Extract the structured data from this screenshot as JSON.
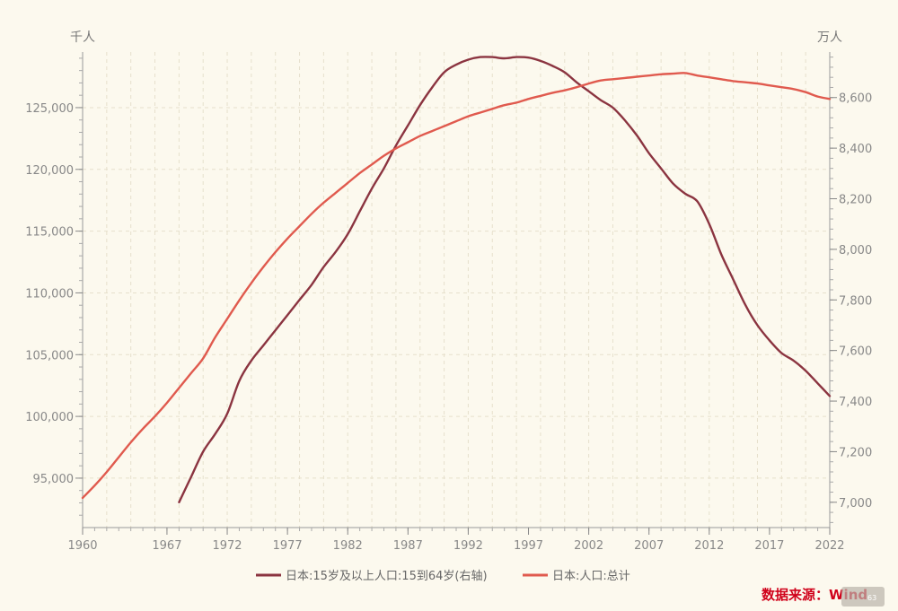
{
  "chart_data": {
    "type": "line",
    "left_unit": "千人",
    "right_unit": "万人",
    "x_ticks": [
      "1960",
      "1967",
      "1972",
      "1977",
      "1982",
      "1987",
      "1992",
      "1997",
      "2002",
      "2007",
      "2012",
      "2017",
      "2022"
    ],
    "left_ticks": [
      "95,000",
      "100,000",
      "105,000",
      "110,000",
      "115,000",
      "120,000",
      "125,000"
    ],
    "right_ticks": [
      "7,000",
      "7,200",
      "7,400",
      "7,600",
      "7,800",
      "8,000",
      "8,200",
      "8,400",
      "8,600"
    ],
    "xlim": [
      1960,
      2022
    ],
    "left_ylim": [
      91000,
      129500
    ],
    "right_ylim": [
      6900,
      8780
    ],
    "grid": true,
    "legend_position": "bottom",
    "series": [
      {
        "name": "日本:15岁及以上人口:15到64岁(右轴)",
        "axis": "right",
        "color": "#8b3440",
        "x": [
          1968,
          1969,
          1970,
          1971,
          1972,
          1973,
          1974,
          1975,
          1976,
          1977,
          1978,
          1979,
          1980,
          1981,
          1982,
          1983,
          1984,
          1985,
          1986,
          1987,
          1988,
          1989,
          1990,
          1991,
          1992,
          1993,
          1994,
          1995,
          1996,
          1997,
          1998,
          1999,
          2000,
          2001,
          2002,
          2003,
          2004,
          2005,
          2006,
          2007,
          2008,
          2009,
          2010,
          2011,
          2012,
          2013,
          2014,
          2015,
          2016,
          2017,
          2018,
          2019,
          2020,
          2021,
          2022
        ],
        "values": [
          7000,
          7100,
          7200,
          7270,
          7350,
          7480,
          7560,
          7620,
          7680,
          7740,
          7800,
          7860,
          7930,
          7990,
          8060,
          8150,
          8240,
          8320,
          8410,
          8490,
          8570,
          8640,
          8700,
          8730,
          8750,
          8760,
          8760,
          8755,
          8760,
          8758,
          8745,
          8725,
          8700,
          8660,
          8625,
          8590,
          8560,
          8510,
          8450,
          8380,
          8320,
          8260,
          8220,
          8190,
          8100,
          7980,
          7880,
          7780,
          7700,
          7640,
          7590,
          7560,
          7520,
          7470,
          7420
        ]
      },
      {
        "name": "日本:人口:总计",
        "axis": "left",
        "color": "#e05a4e",
        "x": [
          1960,
          1961,
          1962,
          1963,
          1964,
          1965,
          1966,
          1967,
          1968,
          1969,
          1970,
          1971,
          1972,
          1973,
          1974,
          1975,
          1976,
          1977,
          1978,
          1979,
          1980,
          1981,
          1982,
          1983,
          1984,
          1985,
          1986,
          1987,
          1988,
          1989,
          1990,
          1991,
          1992,
          1993,
          1994,
          1995,
          1996,
          1997,
          1998,
          1999,
          2000,
          2001,
          2002,
          2003,
          2004,
          2005,
          2006,
          2007,
          2008,
          2009,
          2010,
          2011,
          2012,
          2013,
          2014,
          2015,
          2016,
          2017,
          2018,
          2019,
          2020,
          2021,
          2022
        ],
        "values": [
          93400,
          94400,
          95500,
          96700,
          97900,
          99000,
          100000,
          101100,
          102300,
          103500,
          104700,
          106400,
          107900,
          109400,
          110800,
          112100,
          113300,
          114400,
          115400,
          116400,
          117300,
          118100,
          118900,
          119700,
          120400,
          121100,
          121700,
          122200,
          122700,
          123100,
          123500,
          123900,
          124300,
          124600,
          124900,
          125200,
          125400,
          125700,
          125950,
          126200,
          126400,
          126650,
          126950,
          127200,
          127300,
          127400,
          127500,
          127600,
          127700,
          127750,
          127800,
          127600,
          127450,
          127300,
          127150,
          127050,
          126950,
          126800,
          126650,
          126500,
          126250,
          125900,
          125700
        ]
      }
    ]
  },
  "source_label": "数据来源：Wind",
  "watermark_label": "63"
}
